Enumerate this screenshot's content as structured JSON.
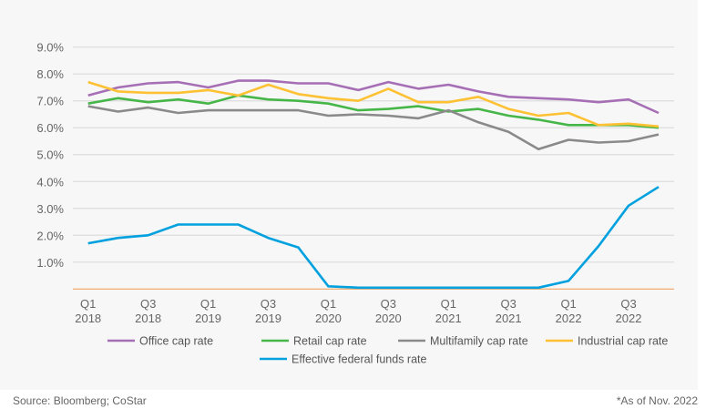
{
  "chart_data": {
    "type": "line",
    "categories": [
      "Q1 2018",
      "Q2 2018",
      "Q3 2018",
      "Q4 2018",
      "Q1 2019",
      "Q2 2019",
      "Q3 2019",
      "Q4 2019",
      "Q1 2020",
      "Q2 2020",
      "Q3 2020",
      "Q4 2020",
      "Q1 2021",
      "Q2 2021",
      "Q3 2021",
      "Q4 2021",
      "Q1 2022",
      "Q2 2022",
      "Q3 2022",
      "Q4 2022"
    ],
    "x_tick_labels": [
      [
        "Q1",
        "2018"
      ],
      [
        "Q3",
        "2018"
      ],
      [
        "Q1",
        "2019"
      ],
      [
        "Q3",
        "2019"
      ],
      [
        "Q1",
        "2020"
      ],
      [
        "Q3",
        "2020"
      ],
      [
        "Q1",
        "2021"
      ],
      [
        "Q3",
        "2021"
      ],
      [
        "Q1",
        "2022"
      ],
      [
        "Q3",
        "2022"
      ]
    ],
    "y_tick_labels": [
      "1.0%",
      "2.0%",
      "3.0%",
      "4.0%",
      "5.0%",
      "6.0%",
      "7.0%",
      "8.0%",
      "9.0%"
    ],
    "ylim": [
      0,
      9
    ],
    "grid": true,
    "legend_placement": "bottom",
    "series": [
      {
        "name": "Office cap rate",
        "color": "#a66fb5",
        "values": [
          7.2,
          7.5,
          7.65,
          7.7,
          7.5,
          7.75,
          7.75,
          7.65,
          7.65,
          7.4,
          7.7,
          7.45,
          7.6,
          7.35,
          7.15,
          7.1,
          7.05,
          6.95,
          7.05,
          6.55
        ]
      },
      {
        "name": "Retail cap rate",
        "color": "#46b648",
        "values": [
          6.9,
          7.1,
          6.95,
          7.05,
          6.9,
          7.2,
          7.05,
          7.0,
          6.9,
          6.65,
          6.7,
          6.8,
          6.6,
          6.7,
          6.45,
          6.3,
          6.1,
          6.1,
          6.1,
          6.0
        ]
      },
      {
        "name": "Multifamily cap rate",
        "color": "#8a8a8a",
        "values": [
          6.8,
          6.6,
          6.75,
          6.55,
          6.65,
          6.65,
          6.65,
          6.65,
          6.45,
          6.5,
          6.45,
          6.35,
          6.65,
          6.2,
          5.85,
          5.2,
          5.55,
          5.45,
          5.5,
          5.75
        ]
      },
      {
        "name": "Industrial cap rate",
        "color": "#fdc133",
        "values": [
          7.7,
          7.35,
          7.3,
          7.3,
          7.4,
          7.2,
          7.6,
          7.25,
          7.1,
          7.0,
          7.45,
          6.95,
          6.95,
          7.15,
          6.7,
          6.45,
          6.55,
          6.1,
          6.15,
          6.05
        ]
      },
      {
        "name": "Effective federal funds rate",
        "color": "#00a1de",
        "values": [
          1.7,
          1.9,
          2.0,
          2.4,
          2.4,
          2.4,
          1.9,
          1.55,
          0.1,
          0.05,
          0.05,
          0.05,
          0.05,
          0.05,
          0.05,
          0.05,
          0.3,
          1.6,
          3.1,
          3.8
        ]
      }
    ]
  },
  "footer": {
    "source": "Source: Bloomberg; CoStar",
    "note": "*As of Nov. 2022"
  }
}
